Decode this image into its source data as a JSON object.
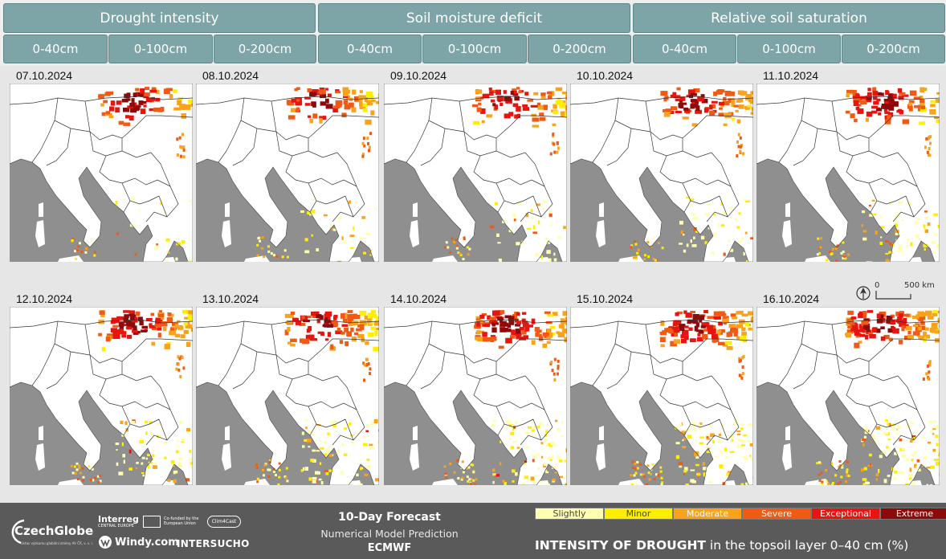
{
  "groups": [
    "Drought intensity",
    "Soil moisture deficit",
    "Relative soil saturation"
  ],
  "depths": [
    "0-40cm",
    "0-100cm",
    "0-200cm",
    "0-40cm",
    "0-100cm",
    "0-200cm",
    "0-40cm",
    "0-100cm",
    "0-200cm"
  ],
  "maps": {
    "dates": [
      "07.10.2024",
      "08.10.2024",
      "09.10.2024",
      "10.10.2024",
      "11.10.2024",
      "12.10.2024",
      "13.10.2024",
      "14.10.2024",
      "15.10.2024",
      "16.10.2024"
    ]
  },
  "scale": {
    "zero": "0",
    "distance": "500 km"
  },
  "footer": {
    "czechglobe": "CzechGlobe",
    "czechglobe_sub": "Ústav výzkumu globální změny AV ČR, v. v. i.",
    "interreg": "Interreg",
    "interreg_sub": "CENTRAL EUROPE",
    "eu": "Co-funded by the European Union",
    "clim4cast": "Clim4Cast",
    "windy": "Windy.com",
    "intersucho": "INTERSUCHO",
    "forecast_title": "10-Day Forecast",
    "forecast_sub": "Numerical Model Prediction",
    "model": "ECMWF"
  },
  "legend": {
    "items": [
      {
        "label": "Slightly",
        "color": "#ffffb2",
        "text": "#444444"
      },
      {
        "label": "Minor",
        "color": "#ffee00",
        "text": "#444444"
      },
      {
        "label": "Moderate",
        "color": "#f9a21b",
        "text": "#ffffff"
      },
      {
        "label": "Severe",
        "color": "#f05a14",
        "text": "#ffffff"
      },
      {
        "label": "Exceptional",
        "color": "#e8150f",
        "text": "#ffffff"
      },
      {
        "label": "Extreme",
        "color": "#8b0a0a",
        "text": "#ffffff"
      }
    ],
    "title_bold": "INTENSITY OF DROUGHT",
    "title_rest": " in the topsoil layer 0–40 cm (%)"
  },
  "colors": {
    "tab": "#7da4a6",
    "sea": "#8f8f8f",
    "land": "#ffffff",
    "footer": "#5a5a5a"
  }
}
